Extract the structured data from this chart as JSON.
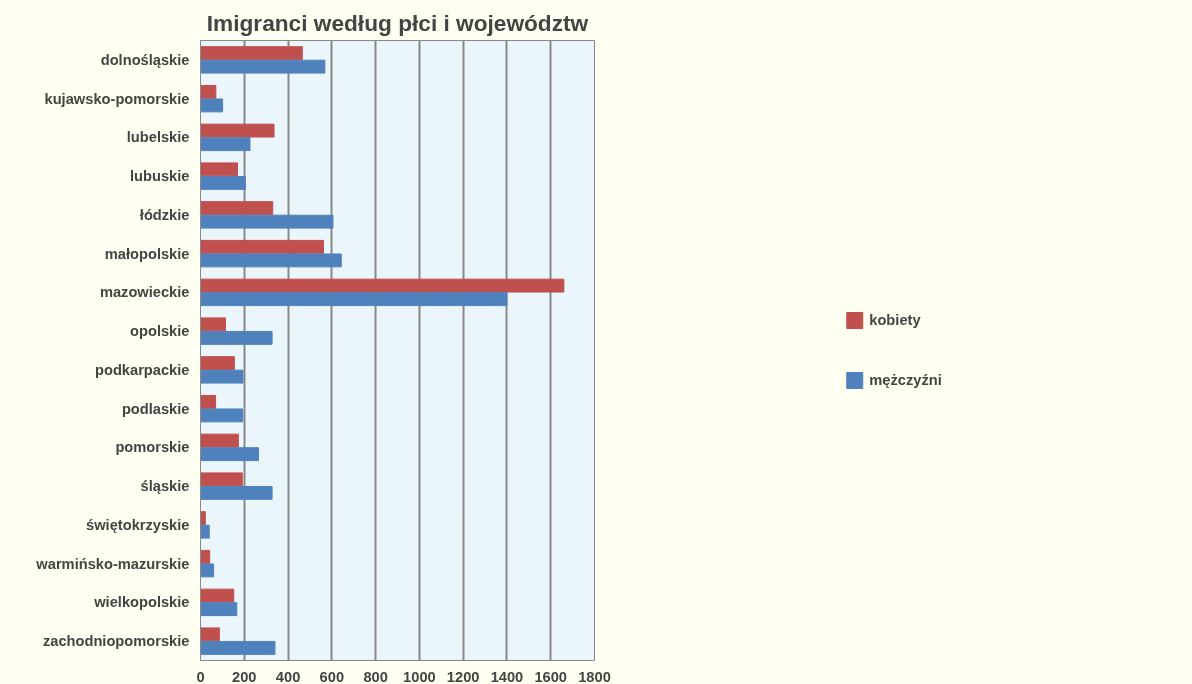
{
  "chart_data": {
    "type": "bar",
    "orientation": "horizontal",
    "title": "Imigranci według płci i województw",
    "categories": [
      "dolnośląskie",
      "kujawsko-pomorskie",
      "lubelskie",
      "lubuskie",
      "łódzkie",
      "małopolskie",
      "mazowieckie",
      "opolskie",
      "podkarpackie",
      "podlaskie",
      "pomorskie",
      "śląskie",
      "świętokrzyskie",
      "warmińsko-mazurskie",
      "wielkopolskie",
      "zachodniopomorskie"
    ],
    "series": [
      {
        "name": "kobiety",
        "color": "#c0504d",
        "values": [
          465,
          70,
          336,
          169,
          330,
          562,
          1660,
          114,
          155,
          69,
          173,
          191,
          22,
          42,
          152,
          86
        ]
      },
      {
        "name": "mężczyźni",
        "color": "#4f81bd",
        "values": [
          568,
          101,
          226,
          205,
          605,
          643,
          1400,
          327,
          194,
          193,
          265,
          327,
          40,
          60,
          166,
          340
        ]
      }
    ],
    "xlim": [
      0,
      1800
    ],
    "xticks": [
      0,
      200,
      400,
      600,
      800,
      1000,
      1200,
      1400,
      1600,
      1800
    ],
    "grid": "x",
    "legend": "right"
  }
}
